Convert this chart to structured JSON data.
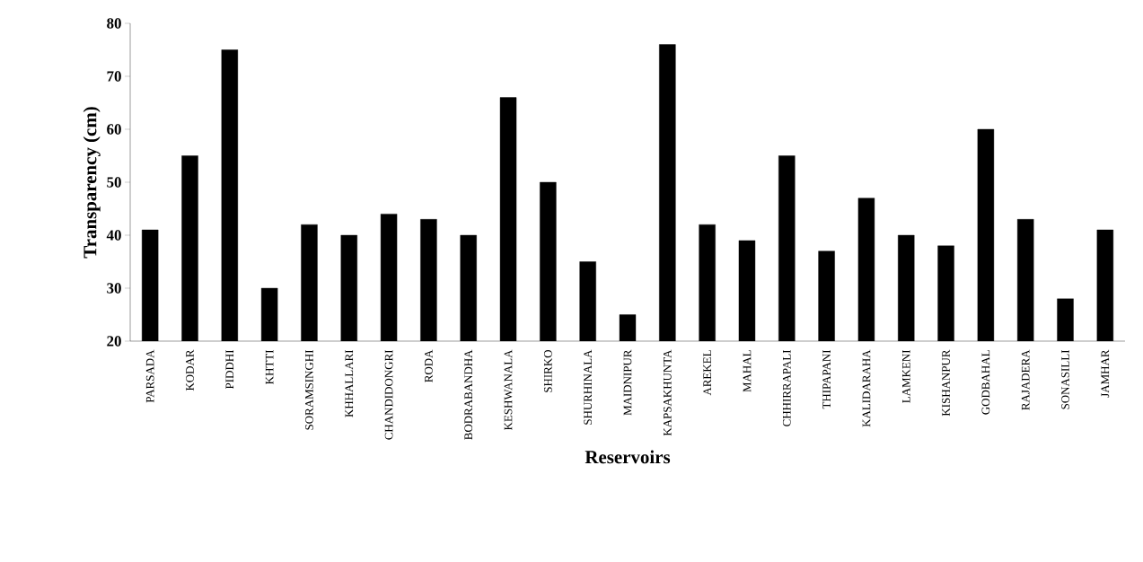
{
  "chart_data": {
    "type": "bar",
    "xlabel": "Reservoirs",
    "ylabel": "Transparency (cm)",
    "categories": [
      "PARSADA",
      "KODAR",
      "PIDDHI",
      "KHTTI",
      "SORAMSINGHI",
      "KHHALLARI",
      "CHANDIDONGRI",
      "RODA",
      "BODRABANDHA",
      "KESHWANALA",
      "SHIRKO",
      "SHURHINALA",
      "MAIDNIPUR",
      "KAPSAKHUNTA",
      "AREKEL",
      "MAHAL",
      "CHHIRRAPALI",
      "THIPAPANI",
      "KALIDARAHA",
      "LAMKENI",
      "KISHANPUR",
      "GODBAHAL",
      "RAJADERA",
      "SONASILLI",
      "JAMHAR"
    ],
    "values": [
      41,
      55,
      75,
      30,
      42,
      40,
      44,
      43,
      40,
      66,
      50,
      35,
      25,
      76,
      42,
      39,
      55,
      37,
      47,
      40,
      38,
      60,
      43,
      28,
      41
    ],
    "color": "#000000",
    "ylim": [
      20,
      80
    ],
    "yticks": [
      20,
      30,
      40,
      50,
      60,
      70,
      80
    ],
    "grid": false
  }
}
